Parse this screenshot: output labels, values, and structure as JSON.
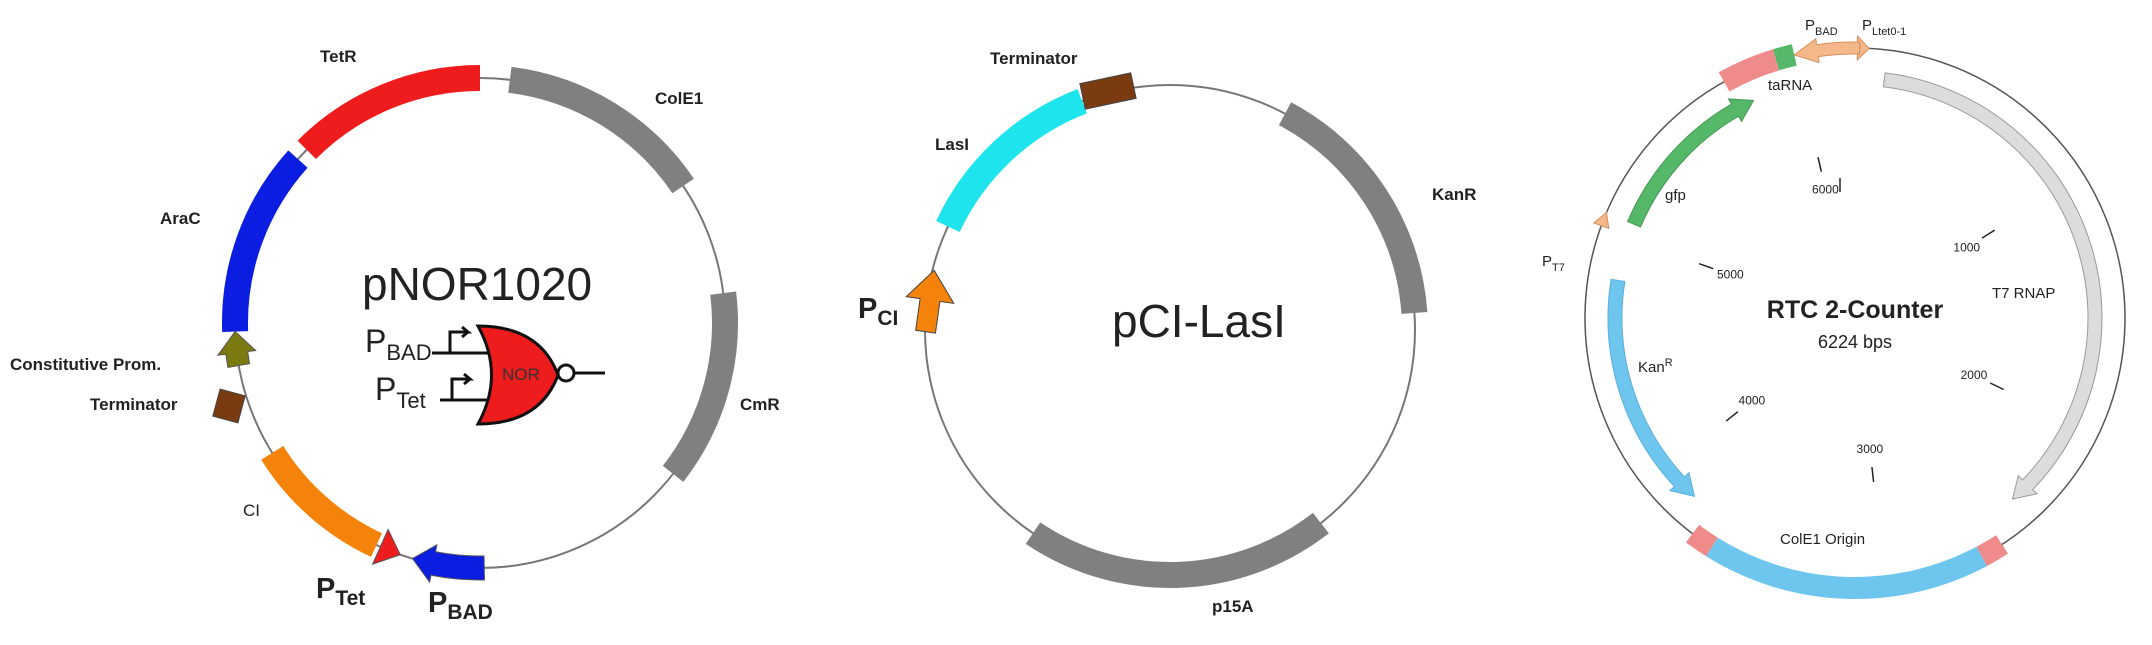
{
  "plasmid1": {
    "name": "pNOR1020",
    "features": {
      "tetr": "TetR",
      "cole1": "ColE1",
      "arac": "AraC",
      "constitutive": "Constitutive Prom.",
      "terminator": "Terminator",
      "cmr": "CmR",
      "ci": "CI"
    },
    "promoters": {
      "ptet_main": "P",
      "ptet_sub": "Tet",
      "pbad_main": "P",
      "pbad_sub": "BAD"
    },
    "gate": {
      "label": "NOR",
      "in1_main": "P",
      "in1_sub": "BAD",
      "in2_main": "P",
      "in2_sub": "Tet"
    },
    "colors": {
      "tetr": "#ee1c1c",
      "arac": "#0a1de0",
      "backbone": "#808080",
      "constitutive": "#7a7a10",
      "terminator": "#7a3b10",
      "ci": "#f5820a"
    }
  },
  "plasmid2": {
    "name": "pCI-LasI",
    "features": {
      "terminator": "Terminator",
      "lasi": "LasI",
      "kanr": "KanR",
      "p15a": "p15A"
    },
    "promoter": {
      "main": "P",
      "sub": "CI"
    },
    "colors": {
      "lasi": "#1ee4ee",
      "terminator": "#7a3b10",
      "backbone": "#808080",
      "promoter": "#f5820a"
    }
  },
  "plasmid3": {
    "name": "RTC 2-Counter",
    "size": "6224 bps",
    "features": {
      "tarna": "taRNA",
      "gfp": "gfp",
      "t7rnap": "T7 RNAP",
      "kanr_main": "Kan",
      "kanr_sup": "R",
      "cole1": "ColE1 Origin"
    },
    "promoters": {
      "pbad_main": "P",
      "pbad_sub": "BAD",
      "pltet_main": "P",
      "pltet_sub": "Ltet0-1",
      "pt7_main": "P",
      "pt7_sub": "T7"
    },
    "ticks": [
      "1000",
      "2000",
      "3000",
      "4000",
      "5000",
      "6000"
    ],
    "colors": {
      "gfp": "#55b868",
      "kanr": "#6ec6ee",
      "pink": "#f08b8b",
      "t7rnap": "#dcdcdc",
      "promoter": "#f5b88a"
    }
  }
}
